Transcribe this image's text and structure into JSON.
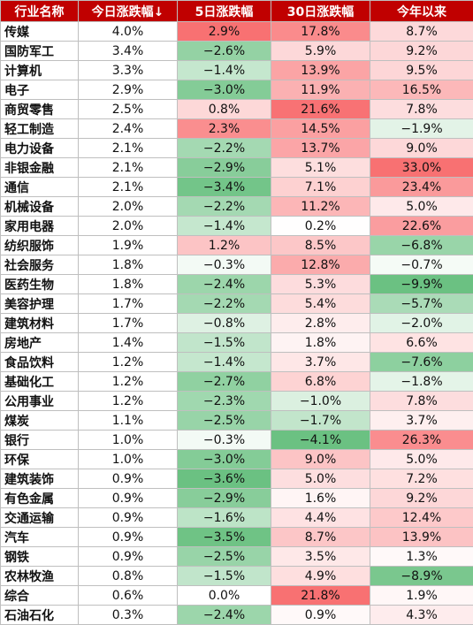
{
  "chart_data": {
    "type": "table",
    "columns": [
      "行业名称",
      "今日涨跌幅↓",
      "5日涨跌幅",
      "30日涨跌幅",
      "今年以来"
    ],
    "rows": [
      {
        "name": "传媒",
        "values": [
          "4.0%",
          "2.9%",
          "17.8%",
          "8.7%"
        ]
      },
      {
        "name": "国防军工",
        "values": [
          "3.4%",
          "−2.6%",
          "5.9%",
          "9.2%"
        ]
      },
      {
        "name": "计算机",
        "values": [
          "3.3%",
          "−1.4%",
          "13.9%",
          "9.5%"
        ]
      },
      {
        "name": "电子",
        "values": [
          "2.9%",
          "−3.0%",
          "11.9%",
          "16.5%"
        ]
      },
      {
        "name": "商贸零售",
        "values": [
          "2.5%",
          "0.8%",
          "21.6%",
          "7.8%"
        ]
      },
      {
        "name": "轻工制造",
        "values": [
          "2.4%",
          "2.3%",
          "14.5%",
          "−1.9%"
        ]
      },
      {
        "name": "电力设备",
        "values": [
          "2.1%",
          "−2.2%",
          "13.7%",
          "9.0%"
        ]
      },
      {
        "name": "非银金融",
        "values": [
          "2.1%",
          "−2.9%",
          "5.1%",
          "33.0%"
        ]
      },
      {
        "name": "通信",
        "values": [
          "2.1%",
          "−3.4%",
          "7.1%",
          "23.4%"
        ]
      },
      {
        "name": "机械设备",
        "values": [
          "2.0%",
          "−2.2%",
          "11.2%",
          "5.0%"
        ]
      },
      {
        "name": "家用电器",
        "values": [
          "2.0%",
          "−1.4%",
          "0.2%",
          "22.6%"
        ]
      },
      {
        "name": "纺织服饰",
        "values": [
          "1.9%",
          "1.2%",
          "8.5%",
          "−6.8%"
        ]
      },
      {
        "name": "社会服务",
        "values": [
          "1.8%",
          "−0.3%",
          "12.8%",
          "−0.7%"
        ]
      },
      {
        "name": "医药生物",
        "values": [
          "1.8%",
          "−2.4%",
          "5.3%",
          "−9.9%"
        ]
      },
      {
        "name": "美容护理",
        "values": [
          "1.7%",
          "−2.2%",
          "5.4%",
          "−5.7%"
        ]
      },
      {
        "name": "建筑材料",
        "values": [
          "1.7%",
          "−0.8%",
          "2.8%",
          "−2.0%"
        ]
      },
      {
        "name": "房地产",
        "values": [
          "1.4%",
          "−1.5%",
          "1.8%",
          "6.6%"
        ]
      },
      {
        "name": "食品饮料",
        "values": [
          "1.2%",
          "−1.4%",
          "3.7%",
          "−7.6%"
        ]
      },
      {
        "name": "基础化工",
        "values": [
          "1.2%",
          "−2.7%",
          "6.8%",
          "−1.8%"
        ]
      },
      {
        "name": "公用事业",
        "values": [
          "1.2%",
          "−2.3%",
          "−1.0%",
          "7.8%"
        ]
      },
      {
        "name": "煤炭",
        "values": [
          "1.1%",
          "−2.5%",
          "−1.7%",
          "3.7%"
        ]
      },
      {
        "name": "银行",
        "values": [
          "1.0%",
          "−0.3%",
          "−4.1%",
          "26.3%"
        ]
      },
      {
        "name": "环保",
        "values": [
          "1.0%",
          "−3.0%",
          "9.0%",
          "5.0%"
        ]
      },
      {
        "name": "建筑装饰",
        "values": [
          "0.9%",
          "−3.6%",
          "5.0%",
          "7.2%"
        ]
      },
      {
        "name": "有色金属",
        "values": [
          "0.9%",
          "−2.9%",
          "1.6%",
          "9.2%"
        ]
      },
      {
        "name": "交通运输",
        "values": [
          "0.9%",
          "−1.6%",
          "4.4%",
          "12.4%"
        ]
      },
      {
        "name": "汽车",
        "values": [
          "0.9%",
          "−3.5%",
          "8.7%",
          "13.9%"
        ]
      },
      {
        "name": "钢铁",
        "values": [
          "0.9%",
          "−2.5%",
          "3.5%",
          "1.3%"
        ]
      },
      {
        "name": "农林牧渔",
        "values": [
          "0.8%",
          "−1.5%",
          "4.9%",
          "−8.9%"
        ]
      },
      {
        "name": "综合",
        "values": [
          "0.6%",
          "0.0%",
          "21.8%",
          "1.9%"
        ]
      },
      {
        "name": "石油石化",
        "values": [
          "0.3%",
          "−2.4%",
          "0.9%",
          "4.3%"
        ]
      }
    ],
    "colors": {
      "header_bg": "#c00000",
      "header_text": "#ffffff",
      "positive_strong": "#f8696b",
      "negative_strong": "#63be7b",
      "neutral": "#ffffff"
    }
  }
}
